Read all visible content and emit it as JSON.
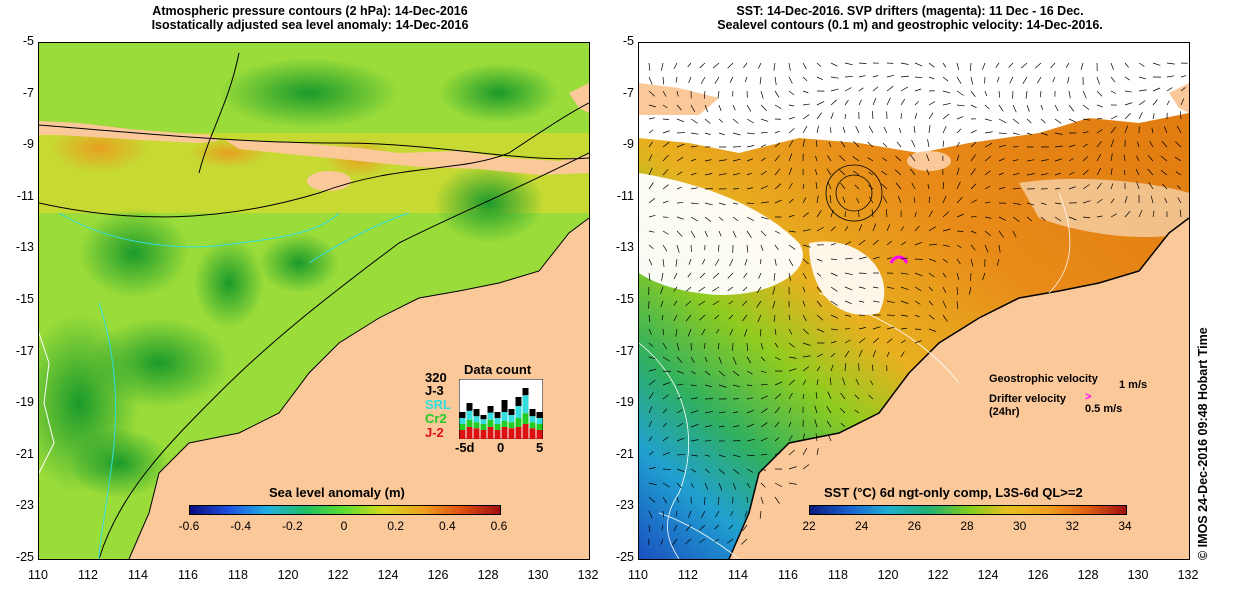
{
  "left_panel": {
    "title_line1": "Atmospheric pressure contours (2 hPa): 14-Dec-2016",
    "title_line2": "Isostatically adjusted sea level anomaly: 14-Dec-2016",
    "y_ticks": [
      "-5",
      "-7",
      "-9",
      "-11",
      "-13",
      "-15",
      "-17",
      "-19",
      "-21",
      "-23",
      "-25"
    ],
    "x_ticks": [
      "110",
      "112",
      "114",
      "116",
      "118",
      "120",
      "122",
      "124",
      "126",
      "128",
      "130",
      "132"
    ],
    "colorbar": {
      "title": "Sea level anomaly (m)",
      "ticks": [
        "-0.6",
        "-0.4",
        "-0.2",
        "0",
        "0.2",
        "0.4",
        "0.6"
      ]
    },
    "data_count": {
      "title": "Data count",
      "max_label": "320",
      "satellites": [
        {
          "name": "J-3",
          "color": "#000000"
        },
        {
          "name": "SRL",
          "color": "#33dddd"
        },
        {
          "name": "Cr2",
          "color": "#22cc22"
        },
        {
          "name": "J-2",
          "color": "#dd1111"
        }
      ],
      "x_ticks": [
        "-5d",
        "0",
        "5"
      ],
      "bars": [
        {
          "total": 0.45,
          "j2": 0.15,
          "cr2": 0.1,
          "srl": 0.1
        },
        {
          "total": 0.6,
          "j2": 0.2,
          "cr2": 0.12,
          "srl": 0.15
        },
        {
          "total": 0.5,
          "j2": 0.18,
          "cr2": 0.1,
          "srl": 0.1
        },
        {
          "total": 0.4,
          "j2": 0.15,
          "cr2": 0.1,
          "srl": 0.08
        },
        {
          "total": 0.55,
          "j2": 0.2,
          "cr2": 0.12,
          "srl": 0.12
        },
        {
          "total": 0.45,
          "j2": 0.15,
          "cr2": 0.1,
          "srl": 0.1
        },
        {
          "total": 0.65,
          "j2": 0.2,
          "cr2": 0.1,
          "srl": 0.15
        },
        {
          "total": 0.5,
          "j2": 0.18,
          "cr2": 0.1,
          "srl": 0.12
        },
        {
          "total": 0.7,
          "j2": 0.2,
          "cr2": 0.15,
          "srl": 0.2
        },
        {
          "total": 0.85,
          "j2": 0.25,
          "cr2": 0.18,
          "srl": 0.3
        },
        {
          "total": 0.5,
          "j2": 0.18,
          "cr2": 0.1,
          "srl": 0.1
        },
        {
          "total": 0.45,
          "j2": 0.15,
          "cr2": 0.1,
          "srl": 0.1
        }
      ]
    }
  },
  "right_panel": {
    "title_line1": "SST: 14-Dec-2016. SVP drifters (magenta): 11 Dec - 16 Dec.",
    "title_line2": "Sealevel contours (0.1 m) and geostrophic velocity: 14-Dec-2016.",
    "y_ticks": [
      "-5",
      "-7",
      "-9",
      "-11",
      "-13",
      "-15",
      "-17",
      "-19",
      "-21",
      "-23",
      "-25"
    ],
    "x_ticks": [
      "110",
      "112",
      "114",
      "116",
      "118",
      "120",
      "122",
      "124",
      "126",
      "128",
      "130",
      "132"
    ],
    "colorbar": {
      "title": "SST (°C) 6d ngt-only comp, L3S-6d QL>=2",
      "ticks": [
        "22",
        "24",
        "26",
        "28",
        "30",
        "32",
        "34"
      ]
    },
    "legend": {
      "geostrophic": "Geostrophic velocity",
      "geostrophic_scale": "1 m/s",
      "drifter_line1": "Drifter velocity",
      "drifter_line2": "(24hr)",
      "drifter_scale": "0.5 m/s"
    },
    "credit": "© IMOS 24-Dec-2016 09:48 Hobart Time"
  },
  "colors": {
    "land": "#fbc89a",
    "sla_low": "#1a8f1a",
    "sla_mid": "#7fdc3a",
    "sla_high": "#e8a020",
    "sst_low": "#2255cc",
    "sst_mid": "#88cc22",
    "sst_high": "#e88a18",
    "drifter": "#ff00ff"
  }
}
